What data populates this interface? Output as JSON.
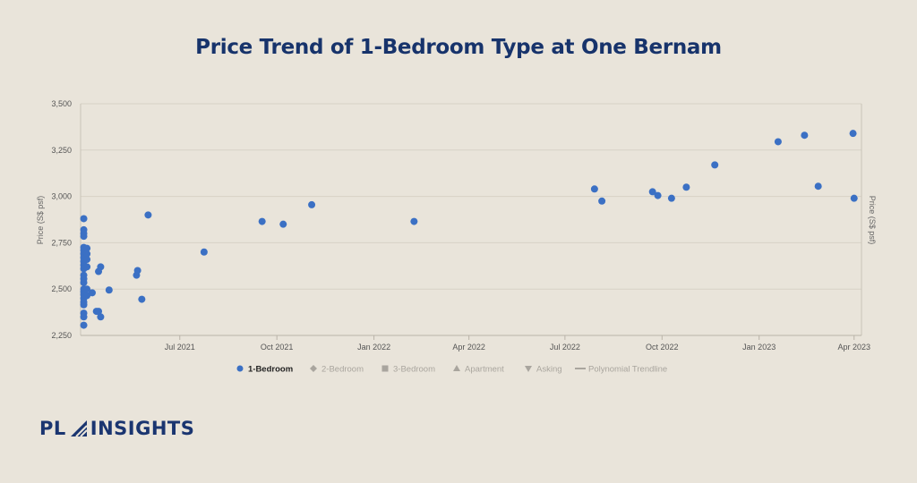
{
  "page": {
    "background": "#e9e4da"
  },
  "brand": {
    "name_left": "PL",
    "name_right": "INSIGHTS",
    "color": "#1a3570"
  },
  "chart_data": {
    "type": "scatter",
    "title": "Price Trend of 1-Bedroom Type at One Bernam",
    "ylabel": "Price (S$ psf)",
    "ylabel_right": "Price (S$ psf)",
    "xlabel": "",
    "ylim": [
      2250,
      3500
    ],
    "yticks": [
      2250,
      2500,
      2750,
      3000,
      3250,
      3500
    ],
    "ytick_labels": [
      "2,250",
      "2,500",
      "2,750",
      "3,000",
      "3,250",
      "3,500"
    ],
    "xlim": [
      "2021-03-29",
      "2023-04-08"
    ],
    "xticks": [
      "2021-07-01",
      "2021-10-01",
      "2022-01-01",
      "2022-04-01",
      "2022-07-01",
      "2022-10-01",
      "2023-01-01",
      "2023-04-01"
    ],
    "xtick_labels": [
      "Jul 2021",
      "Oct 2021",
      "Jan 2022",
      "Apr 2022",
      "Jul 2022",
      "Oct 2022",
      "Jan 2023",
      "Apr 2023"
    ],
    "grid": true,
    "legend_position": "bottom",
    "legend": [
      {
        "label": "1-Bedroom",
        "marker": "circle",
        "active": true,
        "color": "#3b70c4"
      },
      {
        "label": "2-Bedroom",
        "marker": "diamond",
        "active": false,
        "color": "#a9a59e"
      },
      {
        "label": "3-Bedroom",
        "marker": "square",
        "active": false,
        "color": "#a9a59e"
      },
      {
        "label": "Apartment",
        "marker": "triangle-up",
        "active": false,
        "color": "#a9a59e"
      },
      {
        "label": "Asking",
        "marker": "triangle-down",
        "active": false,
        "color": "#a9a59e"
      },
      {
        "label": "Polynomial Trendline",
        "marker": "line",
        "active": false,
        "color": "#a9a59e"
      }
    ],
    "series": [
      {
        "name": "1-Bedroom",
        "color": "#3b70c4",
        "points": [
          [
            "2021-04-01",
            2880
          ],
          [
            "2021-04-01",
            2820
          ],
          [
            "2021-04-01",
            2800
          ],
          [
            "2021-04-01",
            2785
          ],
          [
            "2021-04-01",
            2725
          ],
          [
            "2021-04-01",
            2710
          ],
          [
            "2021-04-01",
            2690
          ],
          [
            "2021-04-01",
            2670
          ],
          [
            "2021-04-01",
            2650
          ],
          [
            "2021-04-01",
            2630
          ],
          [
            "2021-04-01",
            2610
          ],
          [
            "2021-04-01",
            2575
          ],
          [
            "2021-04-01",
            2555
          ],
          [
            "2021-04-01",
            2535
          ],
          [
            "2021-04-01",
            2500
          ],
          [
            "2021-04-01",
            2485
          ],
          [
            "2021-04-01",
            2470
          ],
          [
            "2021-04-01",
            2450
          ],
          [
            "2021-04-01",
            2430
          ],
          [
            "2021-04-01",
            2415
          ],
          [
            "2021-04-01",
            2370
          ],
          [
            "2021-04-01",
            2350
          ],
          [
            "2021-04-01",
            2305
          ],
          [
            "2021-04-04",
            2720
          ],
          [
            "2021-04-04",
            2690
          ],
          [
            "2021-04-04",
            2660
          ],
          [
            "2021-04-04",
            2620
          ],
          [
            "2021-04-04",
            2500
          ],
          [
            "2021-04-04",
            2465
          ],
          [
            "2021-04-09",
            2480
          ],
          [
            "2021-04-13",
            2380
          ],
          [
            "2021-04-15",
            2595
          ],
          [
            "2021-04-15",
            2380
          ],
          [
            "2021-04-17",
            2620
          ],
          [
            "2021-04-17",
            2350
          ],
          [
            "2021-04-25",
            2495
          ],
          [
            "2021-05-21",
            2575
          ],
          [
            "2021-05-22",
            2600
          ],
          [
            "2021-05-26",
            2445
          ],
          [
            "2021-06-01",
            2900
          ],
          [
            "2021-07-24",
            2700
          ],
          [
            "2021-09-17",
            2865
          ],
          [
            "2021-10-07",
            2850
          ],
          [
            "2021-11-03",
            2955
          ],
          [
            "2022-02-08",
            2865
          ],
          [
            "2022-07-29",
            3040
          ],
          [
            "2022-08-05",
            2975
          ],
          [
            "2022-09-22",
            3025
          ],
          [
            "2022-09-27",
            3005
          ],
          [
            "2022-10-10",
            2990
          ],
          [
            "2022-10-24",
            3050
          ],
          [
            "2022-11-20",
            3170
          ],
          [
            "2023-01-19",
            3295
          ],
          [
            "2023-02-13",
            3330
          ],
          [
            "2023-02-26",
            3055
          ],
          [
            "2023-03-31",
            3340
          ],
          [
            "2023-04-01",
            2990
          ]
        ]
      }
    ]
  }
}
